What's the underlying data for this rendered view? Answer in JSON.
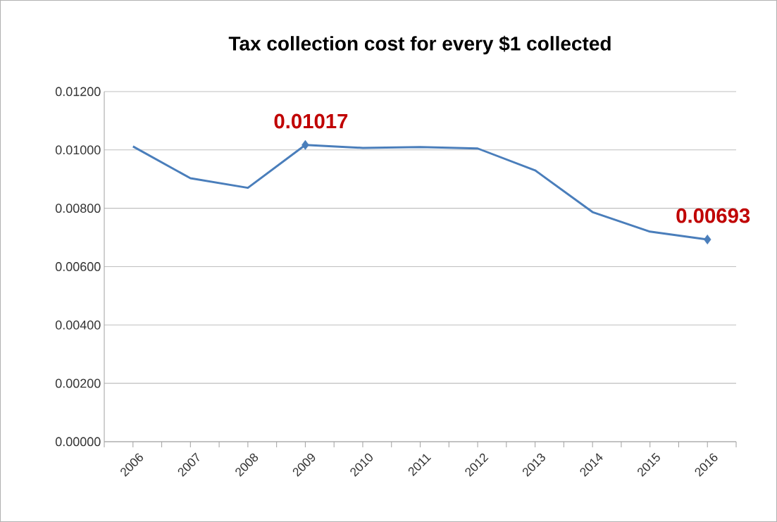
{
  "chart_data": {
    "type": "line",
    "title": "Tax collection cost for every $1 collected",
    "categories": [
      "2006",
      "2007",
      "2008",
      "2009",
      "2010",
      "2011",
      "2012",
      "2013",
      "2014",
      "2015",
      "2016"
    ],
    "values": [
      0.01012,
      0.00903,
      0.0087,
      0.01017,
      0.01007,
      0.0101,
      0.01005,
      0.0093,
      0.00787,
      0.0072,
      0.00693
    ],
    "value_labels": [
      null,
      null,
      null,
      "0.01017",
      null,
      null,
      null,
      null,
      null,
      null,
      "0.00693"
    ],
    "color": "#4a7ebb",
    "ylim": [
      0,
      0.012
    ],
    "yticks": [
      {
        "value": 0,
        "label": "0.00000"
      },
      {
        "value": 0.002,
        "label": "0.00200"
      },
      {
        "value": 0.004,
        "label": "0.00400"
      },
      {
        "value": 0.006,
        "label": "0.00600"
      },
      {
        "value": 0.008,
        "label": "0.00800"
      },
      {
        "value": 0.01,
        "label": "0.01000"
      },
      {
        "value": 0.012,
        "label": "0.01200"
      }
    ],
    "grid": "y",
    "line_style": "solid"
  }
}
